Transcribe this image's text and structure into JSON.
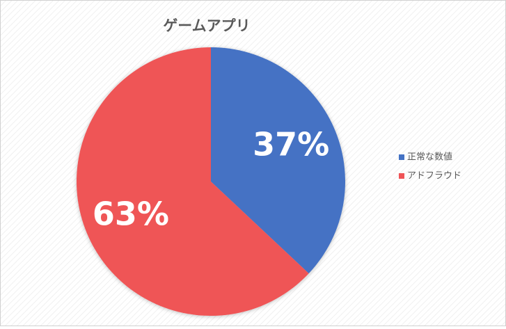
{
  "chart_data": {
    "type": "pie",
    "title": "ゲームアプリ",
    "categories": [
      "正常な数値",
      "アドフラウド"
    ],
    "values": [
      37,
      63
    ],
    "value_labels": [
      "37%",
      "63%"
    ],
    "colors": [
      "#4472c4",
      "#ef5457"
    ],
    "legend": "right"
  }
}
